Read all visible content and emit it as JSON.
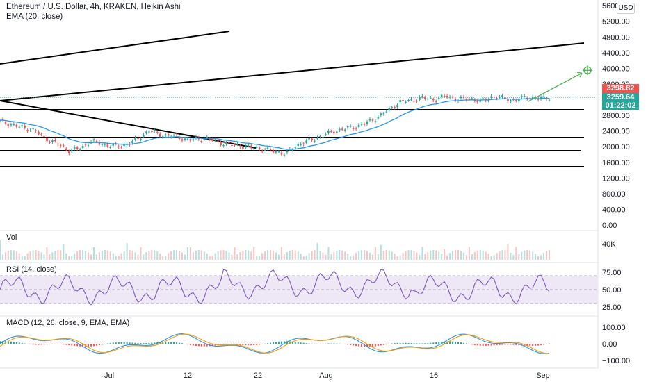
{
  "header": {
    "symbol": "Ethereum / U.S. Dollar, 4h, KRAKEN, Heikin Ashi",
    "indicator": "EMA (20, close)",
    "currency": "USD"
  },
  "price_tags": {
    "current_price": "3259.64",
    "countdown": "01:22:02",
    "marked_price": "3298.82"
  },
  "panes": {
    "vol_label": "Vol",
    "vol_tick": "40K",
    "rsi_label": "RSI (14, close)",
    "macd_label": "MACD (12, 26, close, 9, EMA, EMA)"
  },
  "colors": {
    "up": "#26a69a",
    "down": "#ef5350",
    "ema": "#2196f3",
    "rsi": "#7e57c2",
    "rsi_band": "#ede7f6",
    "macd": "#2196f3",
    "signal": "#ff9800",
    "projection": "#4caf50",
    "current_tag": "#26a69a",
    "marked_tag": "#ef5350"
  },
  "chart_data": {
    "type": "candlestick",
    "style": "Heikin Ashi",
    "timeframe": "4h",
    "x_axis_labels": [
      "Jul",
      "12",
      "22",
      "Aug",
      "16",
      "Sep"
    ],
    "y_axis_ticks": [
      "0.00",
      "400.00",
      "800.00",
      "1200.00",
      "1600.00",
      "2000.00",
      "2400.00",
      "2800.00",
      "3200.00",
      "3600.00",
      "4000.00",
      "4400.00",
      "4800.00",
      "5200.00",
      "5600.00"
    ],
    "price_series": [
      {
        "t": 0,
        "p": 2650
      },
      {
        "t": 3,
        "p": 2520
      },
      {
        "t": 6,
        "p": 2420
      },
      {
        "t": 8,
        "p": 2200
      },
      {
        "t": 10,
        "p": 2080
      },
      {
        "t": 12,
        "p": 1900
      },
      {
        "t": 14,
        "p": 1950
      },
      {
        "t": 16,
        "p": 2150
      },
      {
        "t": 18,
        "p": 2050
      },
      {
        "t": 21,
        "p": 2000
      },
      {
        "t": 24,
        "p": 2180
      },
      {
        "t": 26,
        "p": 2420
      },
      {
        "t": 28,
        "p": 2300
      },
      {
        "t": 30,
        "p": 2280
      },
      {
        "t": 33,
        "p": 2170
      },
      {
        "t": 36,
        "p": 2220
      },
      {
        "t": 39,
        "p": 2080
      },
      {
        "t": 42,
        "p": 2020
      },
      {
        "t": 45,
        "p": 1960
      },
      {
        "t": 48,
        "p": 1880
      },
      {
        "t": 50,
        "p": 1820
      },
      {
        "t": 52,
        "p": 2050
      },
      {
        "t": 55,
        "p": 2200
      },
      {
        "t": 58,
        "p": 2380
      },
      {
        "t": 60,
        "p": 2450
      },
      {
        "t": 62,
        "p": 2500
      },
      {
        "t": 64,
        "p": 2600
      },
      {
        "t": 66,
        "p": 2750
      },
      {
        "t": 68,
        "p": 2950
      },
      {
        "t": 70,
        "p": 3150
      },
      {
        "t": 72,
        "p": 3180
      },
      {
        "t": 74,
        "p": 3250
      },
      {
        "t": 76,
        "p": 3200
      },
      {
        "t": 78,
        "p": 3300
      },
      {
        "t": 80,
        "p": 3200
      },
      {
        "t": 82,
        "p": 3240
      },
      {
        "t": 84,
        "p": 3150
      },
      {
        "t": 86,
        "p": 3280
      },
      {
        "t": 88,
        "p": 3240
      },
      {
        "t": 90,
        "p": 3170
      },
      {
        "t": 92,
        "p": 3280
      },
      {
        "t": 94,
        "p": 3220
      },
      {
        "t": 96,
        "p": 3260
      }
    ],
    "current_price": 3259.64,
    "marked_price": 3298.82,
    "rsi_levels": [
      70,
      50,
      30
    ],
    "rsi_ticks": [
      "25.00",
      "50.00",
      "75.00"
    ],
    "macd_ticks": [
      "−100.00",
      "0.00",
      "100.00"
    ],
    "projection_target": 3950
  }
}
